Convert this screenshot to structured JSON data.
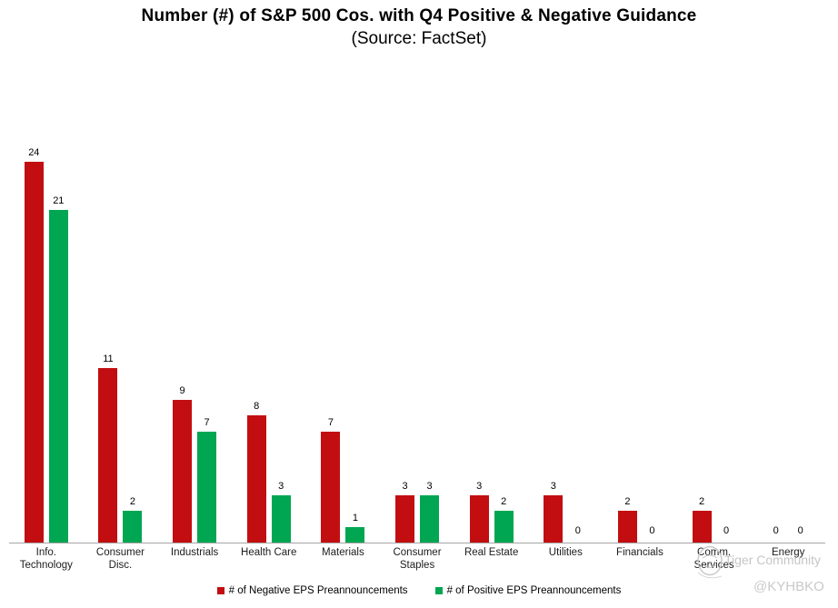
{
  "chart_data": {
    "type": "bar",
    "title": "Number (#) of S&P 500 Cos. with Q4 Positive & Negative Guidance",
    "subtitle": "(Source: FactSet)",
    "categories": [
      "Info.\nTechnology",
      "Consumer\nDisc.",
      "Industrials",
      "Health Care",
      "Materials",
      "Consumer\nStaples",
      "Real Estate",
      "Utilities",
      "Financials",
      "Comm.\nServices",
      "Energy"
    ],
    "series": [
      {
        "name": "# of Negative EPS Preannouncements",
        "color": "#c20e11",
        "values": [
          24,
          11,
          9,
          8,
          7,
          3,
          3,
          3,
          2,
          2,
          0
        ]
      },
      {
        "name": "# of Positive EPS Preannouncements",
        "color": "#00a651",
        "values": [
          21,
          2,
          7,
          3,
          1,
          3,
          2,
          0,
          0,
          0,
          0
        ]
      }
    ],
    "ylim": [
      0,
      26
    ],
    "grid": false,
    "legend_position": "bottom",
    "data_labels": true,
    "axis_line_color": "#a6a6a6"
  },
  "watermarks": {
    "community": "Tiger Community",
    "handle": "@KYHBKO"
  }
}
